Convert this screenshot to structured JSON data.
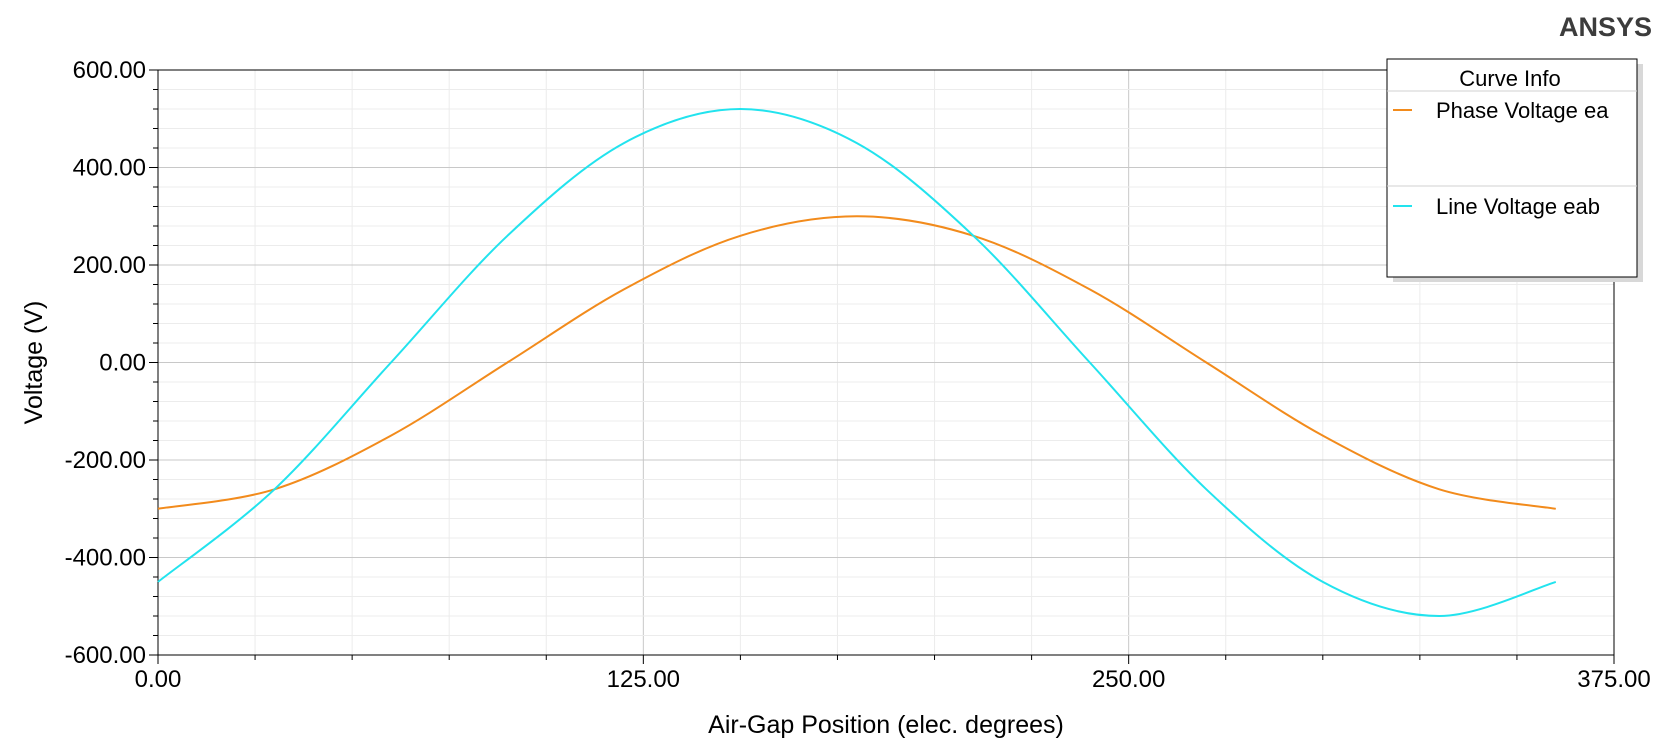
{
  "brand": "ANSYS",
  "chart_data": {
    "type": "line",
    "title": "",
    "xlabel": "Air-Gap Position (elec. degrees)",
    "ylabel": "Voltage (V)",
    "xlim": [
      0,
      375
    ],
    "ylim": [
      -600,
      600
    ],
    "x_ticks": [
      "0.00",
      "125.00",
      "250.00",
      "375.00"
    ],
    "y_ticks": [
      "600.00",
      "400.00",
      "200.00",
      "0.00",
      "-200.00",
      "-400.00",
      "-600.00"
    ],
    "grid": true,
    "legend": {
      "title": "Curve Info",
      "placement": "top-right"
    },
    "series": [
      {
        "name": "Phase Voltage ea",
        "color": "#f28b1c",
        "x": [
          0,
          30,
          60,
          90,
          120,
          150,
          180,
          210,
          240,
          270,
          300,
          330,
          360
        ],
        "y": [
          -300,
          -260,
          -150,
          0,
          150,
          260,
          300,
          260,
          150,
          0,
          -150,
          -260,
          -300
        ]
      },
      {
        "name": "Line Voltage eab",
        "color": "#22e3ee",
        "x": [
          0,
          30,
          60,
          90,
          120,
          150,
          180,
          210,
          240,
          270,
          300,
          330,
          360
        ],
        "y": [
          -450,
          -260,
          0,
          260,
          450,
          520,
          450,
          260,
          0,
          -260,
          -450,
          -520,
          -450
        ]
      }
    ]
  }
}
